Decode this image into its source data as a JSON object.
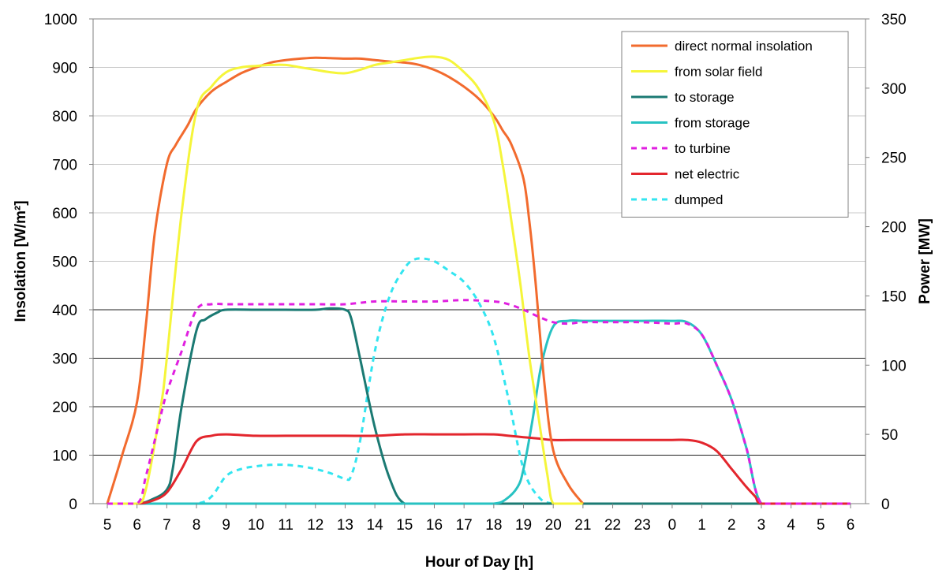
{
  "chart_data": {
    "type": "line",
    "xlabel": "Hour of Day [h]",
    "ylabel_left": "Insolation [W/m²]",
    "ylabel_right": "Power [MW]",
    "ylim_left": [
      0,
      1000
    ],
    "ylim_right": [
      0,
      350
    ],
    "yticks_left": [
      "0",
      "100",
      "200",
      "300",
      "400",
      "500",
      "600",
      "700",
      "800",
      "900",
      "1000"
    ],
    "yticks_right": [
      "0",
      "50",
      "100",
      "150",
      "200",
      "250",
      "300",
      "350"
    ],
    "x_tick_labels": [
      "5",
      "6",
      "7",
      "8",
      "9",
      "10",
      "11",
      "12",
      "13",
      "14",
      "15",
      "16",
      "17",
      "18",
      "19",
      "20",
      "21",
      "22",
      "23",
      "0",
      "1",
      "2",
      "3",
      "4",
      "5",
      "6"
    ],
    "grid": "horizontal",
    "legend_position": "top-right",
    "series": [
      {
        "name": "direct normal insolation",
        "axis": "left",
        "color": "#f26b2e",
        "dash": "solid",
        "x": [
          5,
          5.5,
          6,
          6.3,
          6.6,
          7,
          7.3,
          7.7,
          8,
          8.5,
          9,
          9.5,
          10,
          10.5,
          11,
          11.5,
          12,
          12.5,
          13,
          13.5,
          14,
          14.5,
          15,
          15.5,
          16,
          16.5,
          17,
          17.5,
          18,
          18.3,
          18.6,
          19,
          19.2,
          19.4,
          19.7,
          20,
          20.5,
          21
        ],
        "y": [
          0,
          100,
          210,
          370,
          560,
          700,
          740,
          780,
          815,
          850,
          870,
          888,
          900,
          910,
          915,
          918,
          920,
          919,
          918,
          918,
          915,
          912,
          910,
          905,
          895,
          880,
          860,
          835,
          800,
          770,
          740,
          670,
          580,
          460,
          250,
          110,
          40,
          0
        ]
      },
      {
        "name": "from solar field",
        "axis": "left",
        "color": "#f5f53a",
        "dash": "solid",
        "x": [
          5,
          6,
          6.3,
          6.8,
          7,
          7.5,
          8,
          8.5,
          9,
          9.5,
          10,
          10.5,
          11,
          11.5,
          12,
          12.5,
          13,
          13.5,
          14,
          14.5,
          15,
          15.5,
          16,
          16.5,
          17,
          17.5,
          18,
          18.3,
          18.6,
          18.9,
          19.2,
          19.5,
          19.8,
          20,
          20.5,
          21
        ],
        "y": [
          0,
          0,
          30,
          200,
          300,
          600,
          810,
          860,
          890,
          900,
          903,
          905,
          905,
          900,
          895,
          890,
          888,
          895,
          905,
          910,
          915,
          920,
          922,
          915,
          890,
          855,
          790,
          700,
          580,
          450,
          300,
          180,
          60,
          0,
          0,
          0
        ]
      },
      {
        "name": "to storage",
        "axis": "right",
        "color": "#1b7a73",
        "dash": "solid",
        "x": [
          5,
          6,
          6.5,
          7,
          7.2,
          7.5,
          8,
          8.3,
          8.7,
          9,
          10,
          11,
          12,
          12.5,
          13,
          13.2,
          13.5,
          14,
          14.5,
          15,
          16,
          17,
          18,
          19,
          20,
          21,
          22,
          23,
          24,
          25,
          26,
          27,
          28,
          29,
          30
        ],
        "y": [
          0,
          0,
          3,
          10,
          25,
          70,
          125,
          133,
          138,
          140,
          140,
          140,
          140,
          141,
          140,
          134,
          105,
          55,
          18,
          0,
          0,
          0,
          0,
          0,
          0,
          0,
          0,
          0,
          0,
          0,
          0,
          0,
          0,
          0,
          0
        ]
      },
      {
        "name": "from storage",
        "axis": "right",
        "color": "#27c2c2",
        "dash": "solid",
        "x": [
          5,
          10,
          15,
          17,
          18,
          18.4,
          18.8,
          19,
          19.3,
          19.6,
          20,
          20.5,
          21,
          22,
          23,
          24,
          24.5,
          25,
          25.5,
          26,
          26.5,
          27,
          28,
          29,
          30
        ],
        "y": [
          0,
          0,
          0,
          0,
          0,
          3,
          12,
          25,
          60,
          100,
          128,
          132,
          132,
          132,
          132,
          132,
          131,
          122,
          100,
          75,
          40,
          0,
          0,
          0,
          0
        ]
      },
      {
        "name": "to turbine",
        "axis": "right",
        "color": "#e01fe0",
        "dash": "dashed",
        "x": [
          5,
          6,
          6.3,
          6.7,
          7,
          7.5,
          8,
          8.5,
          9,
          10,
          11,
          12,
          13,
          14,
          15,
          16,
          17,
          18,
          18.5,
          19,
          19.5,
          20,
          20.5,
          21,
          22,
          23,
          24,
          24.5,
          25,
          25.5,
          26,
          26.5,
          27,
          28,
          29,
          30
        ],
        "y": [
          0,
          0,
          20,
          55,
          80,
          110,
          140,
          144,
          144,
          144,
          144,
          144,
          144,
          146,
          146,
          146,
          147,
          146,
          144,
          140,
          135,
          131,
          130,
          131,
          131,
          131,
          130,
          130,
          122,
          100,
          75,
          40,
          0,
          0,
          0,
          0
        ]
      },
      {
        "name": "net electric",
        "axis": "right",
        "color": "#e3262d",
        "dash": "solid",
        "x": [
          5,
          6,
          6.5,
          7,
          7.5,
          8,
          8.5,
          9,
          10,
          11,
          12,
          13,
          14,
          15,
          16,
          17,
          18,
          18.5,
          19,
          19.5,
          20,
          21,
          22,
          23,
          24,
          24.5,
          25,
          25.5,
          26,
          26.5,
          26.8,
          27,
          28,
          29,
          30
        ],
        "y": [
          0,
          0,
          2,
          8,
          25,
          45,
          49,
          50,
          49,
          49,
          49,
          49,
          49,
          50,
          50,
          50,
          50,
          49,
          48,
          47,
          46,
          46,
          46,
          46,
          46,
          46,
          44,
          38,
          25,
          12,
          5,
          0,
          0,
          0,
          0
        ]
      },
      {
        "name": "dumped",
        "axis": "right",
        "color": "#33e5f0",
        "dash": "dashed",
        "x": [
          5,
          6,
          7,
          8,
          8.5,
          9,
          9.5,
          10,
          10.5,
          11,
          11.5,
          12,
          12.5,
          13,
          13.2,
          13.5,
          14,
          14.5,
          15,
          15.3,
          15.6,
          16,
          16.5,
          17,
          17.5,
          18,
          18.5,
          19,
          19.5,
          20,
          21,
          22,
          23,
          24,
          25,
          26,
          27,
          28,
          29,
          30
        ],
        "y": [
          0,
          0,
          0,
          0,
          5,
          20,
          25,
          27,
          28,
          28,
          27,
          25,
          22,
          18,
          20,
          45,
          110,
          150,
          170,
          176,
          177,
          175,
          168,
          160,
          145,
          120,
          75,
          25,
          5,
          0,
          0,
          0,
          0,
          0,
          0,
          0,
          0,
          0,
          0,
          0
        ]
      }
    ]
  }
}
